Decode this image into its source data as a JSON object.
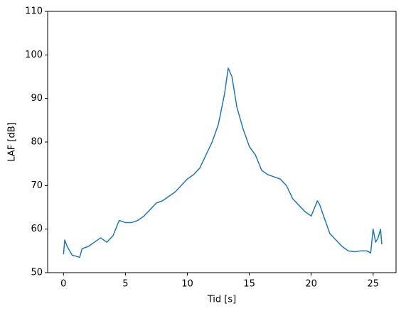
{
  "chart_data": {
    "type": "line",
    "xlabel": "Tid [s]",
    "ylabel": "LAF [dB]",
    "x": [
      0,
      0.1,
      0.3,
      0.5,
      0.7,
      1.0,
      1.3,
      1.5,
      2.0,
      2.5,
      3.0,
      3.5,
      4.0,
      4.5,
      5.0,
      5.5,
      6.0,
      6.5,
      7.0,
      7.5,
      8.0,
      8.5,
      9.0,
      9.5,
      10.0,
      10.5,
      11.0,
      11.5,
      12.0,
      12.5,
      13.0,
      13.3,
      13.6,
      14.0,
      14.5,
      15.0,
      15.5,
      16.0,
      16.5,
      17.0,
      17.5,
      18.0,
      18.5,
      19.0,
      19.5,
      20.0,
      20.5,
      20.7,
      21.0,
      21.5,
      22.0,
      22.5,
      23.0,
      23.5,
      24.0,
      24.5,
      24.8,
      25.0,
      25.2,
      25.4,
      25.6,
      25.7
    ],
    "series": [
      {
        "color": "#1f77b4",
        "values": [
          54.2,
          57.5,
          56,
          55,
          54,
          53.8,
          53.5,
          55.5,
          56,
          57,
          58,
          57,
          58.5,
          62,
          61.5,
          61.5,
          62,
          63,
          64.5,
          66,
          66.5,
          67.5,
          68.5,
          70,
          71.5,
          72.5,
          74,
          77,
          80,
          84,
          91,
          97,
          95,
          88,
          83,
          79,
          77,
          73.5,
          72.5,
          72,
          71.5,
          70,
          67,
          65.5,
          64,
          63,
          66.5,
          65.5,
          63,
          59,
          57.5,
          56,
          55,
          54.8,
          55,
          55,
          54.5,
          60,
          57,
          58,
          60,
          56.5
        ]
      }
    ],
    "xlim": [
      -1.28,
      26.85
    ],
    "xticks": [
      0,
      5,
      10,
      15,
      20,
      25
    ],
    "ylim": [
      50,
      110
    ],
    "yticks": [
      50,
      60,
      70,
      80,
      90,
      100,
      110
    ]
  }
}
